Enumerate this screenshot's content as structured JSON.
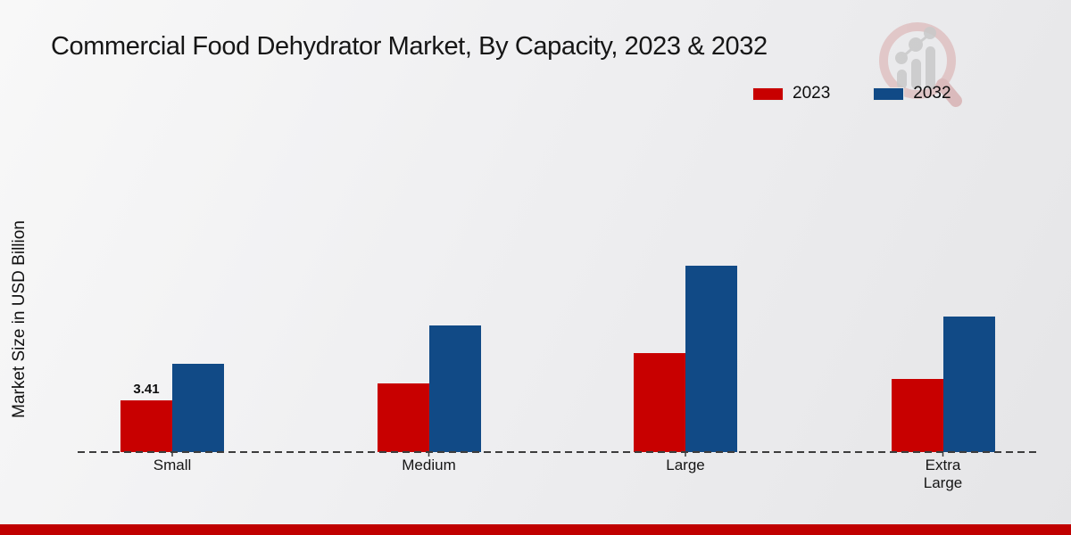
{
  "page": {
    "title": "Commercial Food Dehydrator Market, By Capacity, 2023 & 2032"
  },
  "y_axis": {
    "label": "Market Size in USD Billion"
  },
  "legend": {
    "items": [
      {
        "label": "2023",
        "color": "#c80000"
      },
      {
        "label": "2032",
        "color": "#114a86"
      }
    ]
  },
  "watermark": {
    "name": "magnifier-bar-chart-logo",
    "ring_color": "#dcb3b3",
    "bars_color": "#c6c6c6"
  },
  "footer": {
    "bar_color": "#c00000"
  },
  "chart_data": {
    "type": "bar",
    "title": "Commercial Food Dehydrator Market, By Capacity, 2023 & 2032",
    "xlabel": "",
    "ylabel": "Market Size in USD Billion",
    "categories": [
      "Small",
      "Medium",
      "Large",
      "Extra Large"
    ],
    "series": [
      {
        "name": "2023",
        "color": "#c80000",
        "values": [
          3.41,
          4.5,
          6.5,
          4.8
        ]
      },
      {
        "name": "2032",
        "color": "#114a86",
        "values": [
          5.8,
          8.3,
          12.2,
          8.9
        ]
      }
    ],
    "data_labels": [
      {
        "series": "2023",
        "category": "Small",
        "text": "3.41"
      }
    ],
    "ylim": [
      0,
      13
    ],
    "grid": false,
    "y_tick_labels": "none",
    "baseline_style": "dashed",
    "legend_position": "top-right",
    "baseline_color": "#3d3d3d"
  }
}
